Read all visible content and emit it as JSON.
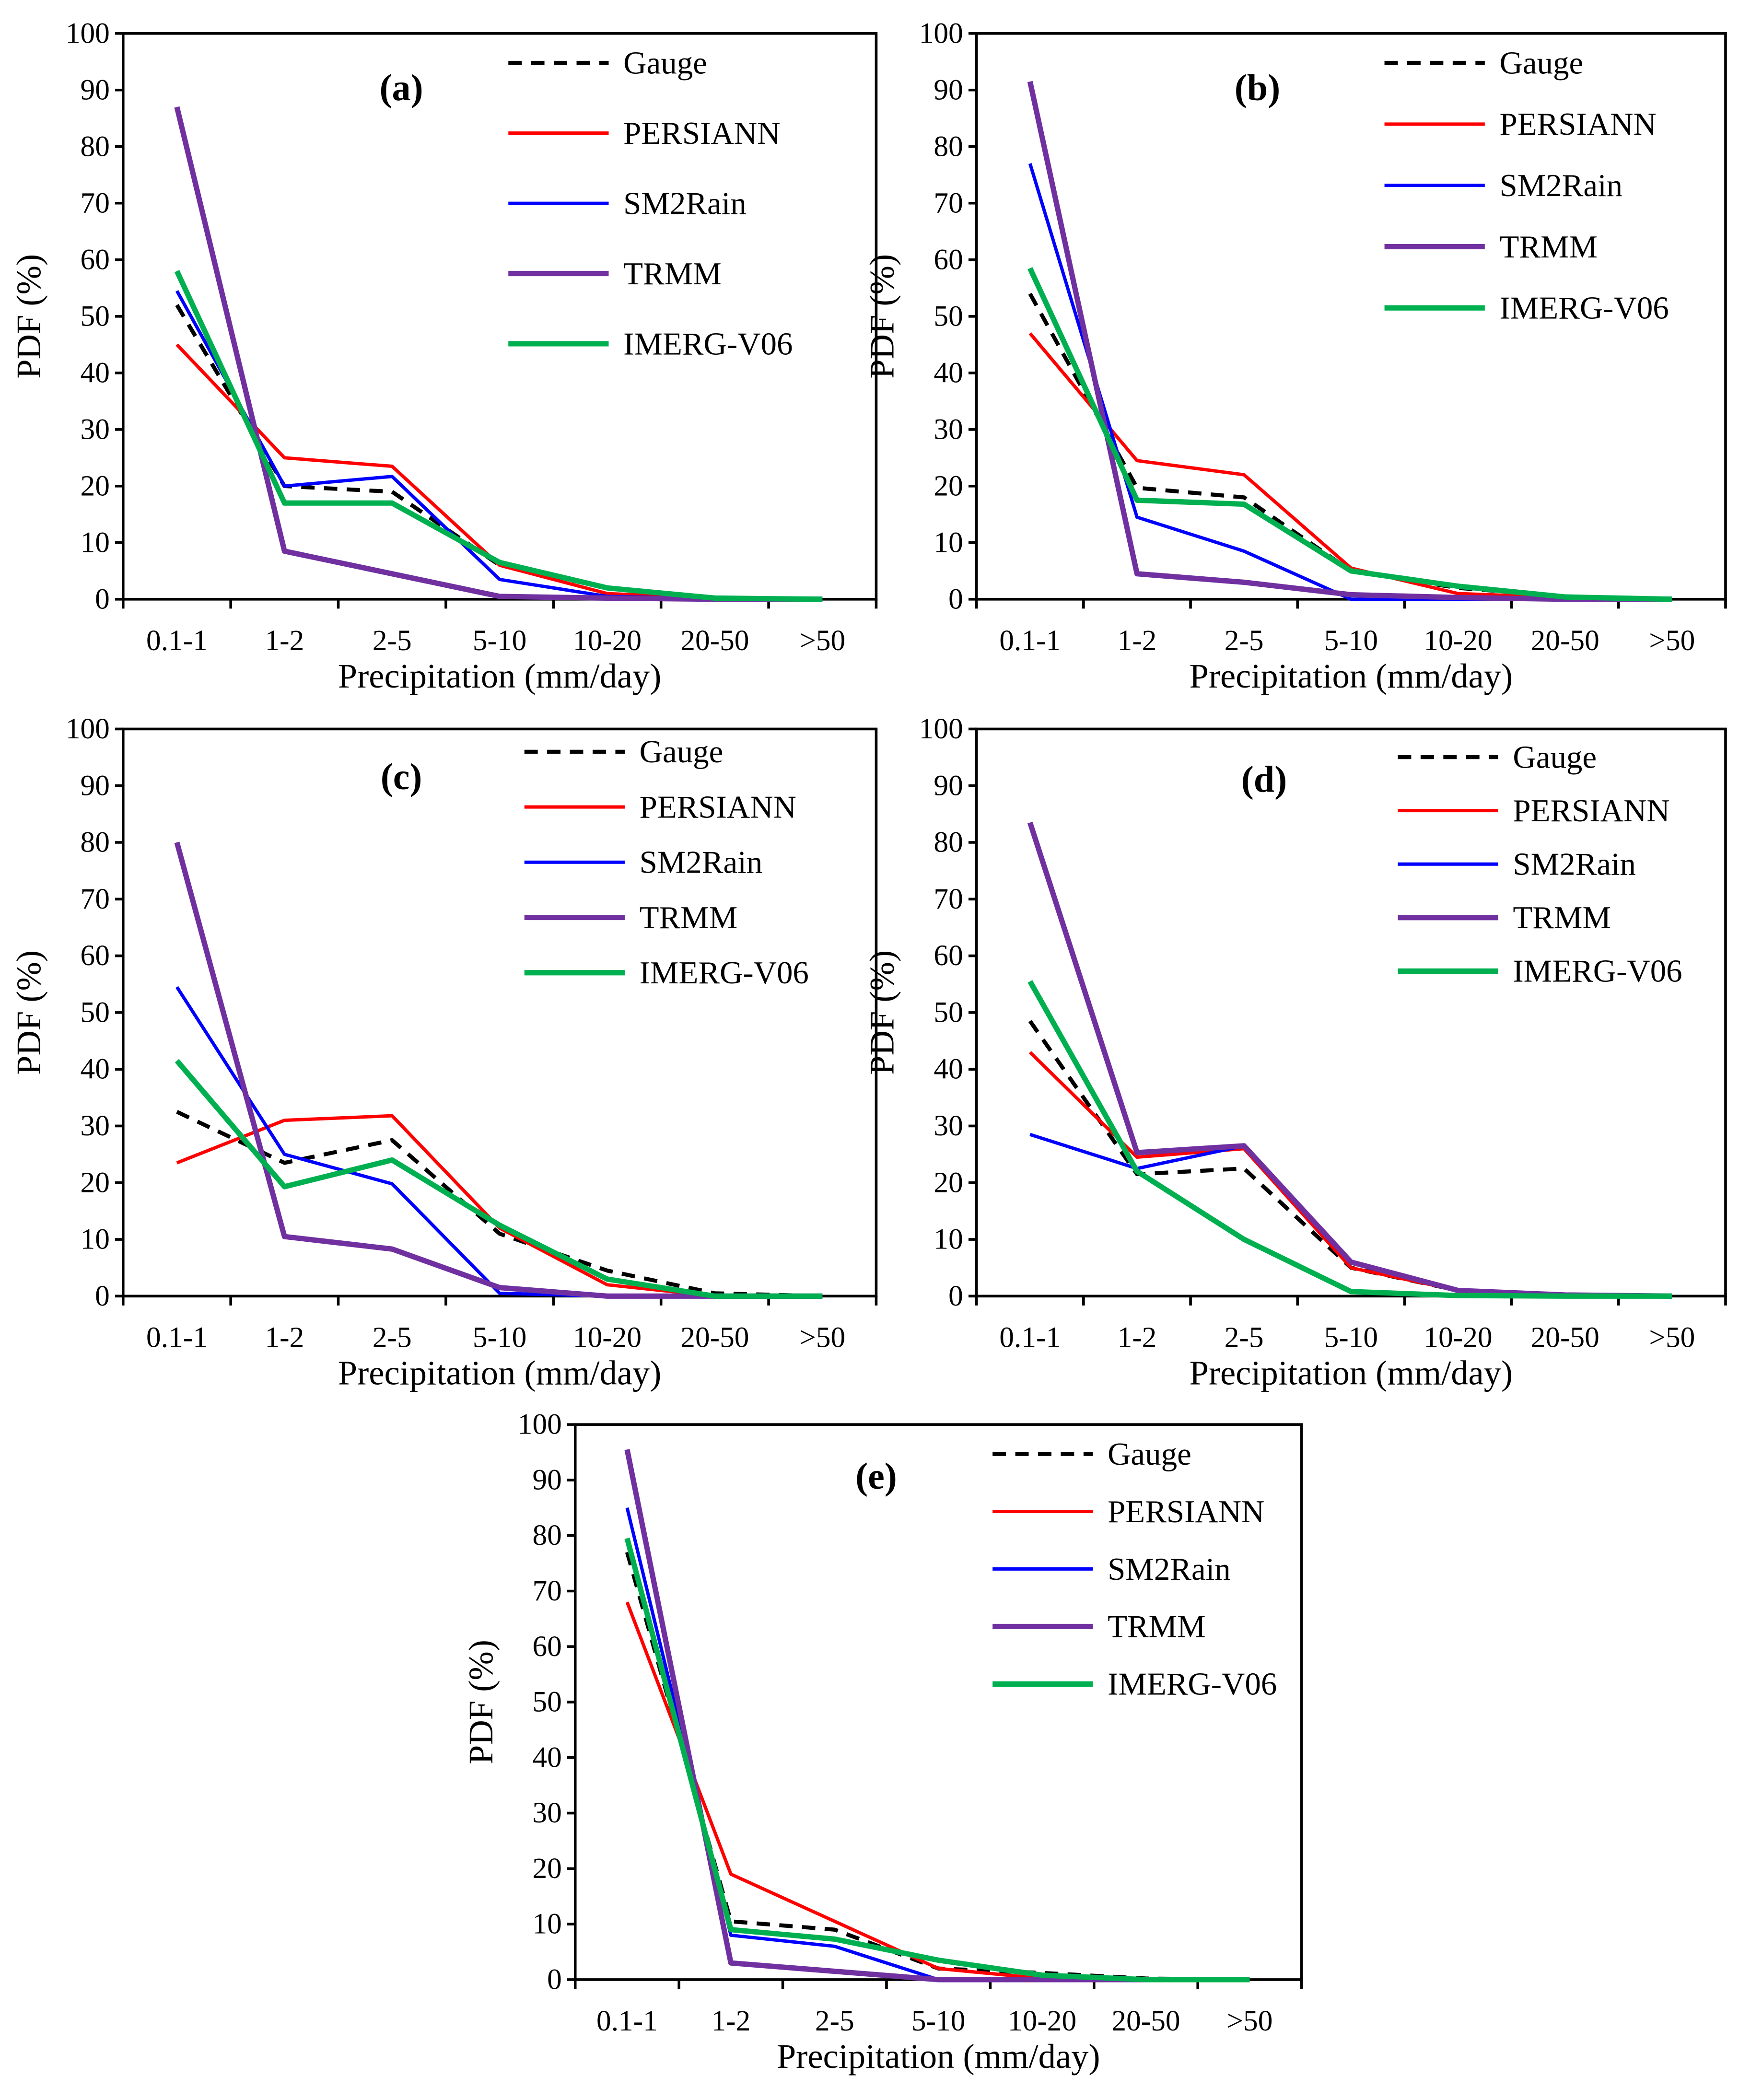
{
  "chart_data": [
    {
      "type": "line",
      "title": "(a)",
      "xlabel": "Precipitation (mm/day)",
      "ylabel": "PDF (%)",
      "ylim": [
        0,
        100
      ],
      "yticks": [
        "0",
        "10",
        "20",
        "30",
        "40",
        "50",
        "60",
        "70",
        "80",
        "90",
        "100"
      ],
      "categories": [
        "0.1-1",
        "1-2",
        "2-5",
        "5-10",
        "10-20",
        "20-50",
        ">50"
      ],
      "legend": "top-right",
      "grid": false,
      "series": [
        {
          "name": "Gauge",
          "values": [
            52,
            20,
            19,
            6,
            2,
            0.3,
            0
          ]
        },
        {
          "name": "PERSIANN",
          "values": [
            45,
            25,
            23.5,
            6,
            1,
            0.2,
            0
          ]
        },
        {
          "name": "SM2Rain",
          "values": [
            54.5,
            20,
            21.7,
            3.5,
            0.5,
            0.1,
            0
          ]
        },
        {
          "name": "TRMM",
          "values": [
            87,
            8.5,
            4.5,
            0.5,
            0.2,
            0,
            0
          ]
        },
        {
          "name": "IMERG-V06",
          "values": [
            58,
            17,
            17,
            6.5,
            2,
            0.2,
            0
          ]
        }
      ]
    },
    {
      "type": "line",
      "title": "(b)",
      "xlabel": "Precipitation (mm/day)",
      "ylabel": "PDF (%)",
      "ylim": [
        0,
        100
      ],
      "yticks": [
        "0",
        "10",
        "20",
        "30",
        "40",
        "50",
        "60",
        "70",
        "80",
        "90",
        "100"
      ],
      "categories": [
        "0.1-1",
        "1-2",
        "2-5",
        "5-10",
        "10-20",
        "20-50",
        ">50"
      ],
      "legend": "top-right",
      "grid": false,
      "series": [
        {
          "name": "Gauge",
          "values": [
            54,
            19.7,
            18,
            5,
            2,
            0.5,
            0
          ]
        },
        {
          "name": "PERSIANN",
          "values": [
            47,
            24.5,
            22,
            5.5,
            1,
            0.3,
            0
          ]
        },
        {
          "name": "SM2Rain",
          "values": [
            77,
            14.5,
            8.5,
            0,
            0,
            0,
            0
          ]
        },
        {
          "name": "TRMM",
          "values": [
            91.5,
            4.5,
            3,
            0.8,
            0.3,
            0,
            0
          ]
        },
        {
          "name": "IMERG-V06",
          "values": [
            58.5,
            17.5,
            16.8,
            5,
            2.3,
            0.4,
            0
          ]
        }
      ]
    },
    {
      "type": "line",
      "title": "(c)",
      "xlabel": "Precipitation (mm/day)",
      "ylabel": "PDF (%)",
      "ylim": [
        0,
        100
      ],
      "yticks": [
        "0",
        "10",
        "20",
        "30",
        "40",
        "50",
        "60",
        "70",
        "80",
        "90",
        "100"
      ],
      "categories": [
        "0.1-1",
        "1-2",
        "2-5",
        "5-10",
        "10-20",
        "20-50",
        ">50"
      ],
      "legend": "top-right",
      "grid": false,
      "series": [
        {
          "name": "Gauge",
          "values": [
            32.5,
            23.5,
            27.5,
            11,
            4.5,
            0.5,
            0
          ]
        },
        {
          "name": "PERSIANN",
          "values": [
            23.5,
            31,
            31.8,
            12,
            2,
            0,
            0
          ]
        },
        {
          "name": "SM2Rain",
          "values": [
            54.5,
            25,
            19.8,
            0.5,
            0,
            0,
            0
          ]
        },
        {
          "name": "TRMM",
          "values": [
            80,
            10.5,
            8.3,
            1.5,
            0,
            0,
            0
          ]
        },
        {
          "name": "IMERG-V06",
          "values": [
            41.5,
            19.3,
            24,
            12.5,
            3,
            0,
            0
          ]
        }
      ]
    },
    {
      "type": "line",
      "title": "(d)",
      "xlabel": "Precipitation (mm/day)",
      "ylabel": "PDF (%)",
      "ylim": [
        0,
        100
      ],
      "yticks": [
        "0",
        "10",
        "20",
        "30",
        "40",
        "50",
        "60",
        "70",
        "80",
        "90",
        "100"
      ],
      "categories": [
        "0.1-1",
        "1-2",
        "2-5",
        "5-10",
        "10-20",
        "20-50",
        ">50"
      ],
      "legend": "top-right",
      "grid": false,
      "series": [
        {
          "name": "Gauge",
          "values": [
            48.5,
            21.5,
            22.5,
            5,
            1,
            0.2,
            0
          ]
        },
        {
          "name": "PERSIANN",
          "values": [
            43,
            24.5,
            26,
            5,
            1,
            0.2,
            0
          ]
        },
        {
          "name": "SM2Rain",
          "values": [
            28.5,
            22.5,
            26.5,
            6,
            1,
            0.2,
            0
          ]
        },
        {
          "name": "TRMM",
          "values": [
            83.5,
            25.3,
            26.5,
            6,
            1,
            0.2,
            0
          ]
        },
        {
          "name": "IMERG-V06",
          "values": [
            55.5,
            22,
            10,
            0.8,
            0.1,
            0,
            0
          ]
        }
      ]
    },
    {
      "type": "line",
      "title": "(e)",
      "xlabel": "Precipitation (mm/day)",
      "ylabel": "PDF (%)",
      "ylim": [
        0,
        100
      ],
      "yticks": [
        "0",
        "10",
        "20",
        "30",
        "40",
        "50",
        "60",
        "70",
        "80",
        "90",
        "100"
      ],
      "categories": [
        "0.1-1",
        "1-2",
        "2-5",
        "5-10",
        "10-20",
        "20-50",
        ">50"
      ],
      "legend": "top-right",
      "grid": false,
      "series": [
        {
          "name": "Gauge",
          "values": [
            77,
            10.5,
            9,
            2,
            1.2,
            0.2,
            0
          ]
        },
        {
          "name": "PERSIANN",
          "values": [
            68,
            19,
            10.5,
            2,
            0.2,
            0,
            0
          ]
        },
        {
          "name": "SM2Rain",
          "values": [
            85,
            8,
            6,
            0,
            0,
            0,
            0
          ]
        },
        {
          "name": "TRMM",
          "values": [
            95.5,
            3,
            1.5,
            0,
            0,
            0,
            0
          ]
        },
        {
          "name": "IMERG-V06",
          "values": [
            79.5,
            9,
            7.3,
            3.5,
            0.8,
            0,
            0
          ]
        }
      ]
    }
  ],
  "series_colors": {
    "Gauge": "#000000",
    "PERSIANN": "#ff0000",
    "SM2Rain": "#0000ff",
    "TRMM": "#7030a0",
    "IMERG-V06": "#00b050"
  }
}
